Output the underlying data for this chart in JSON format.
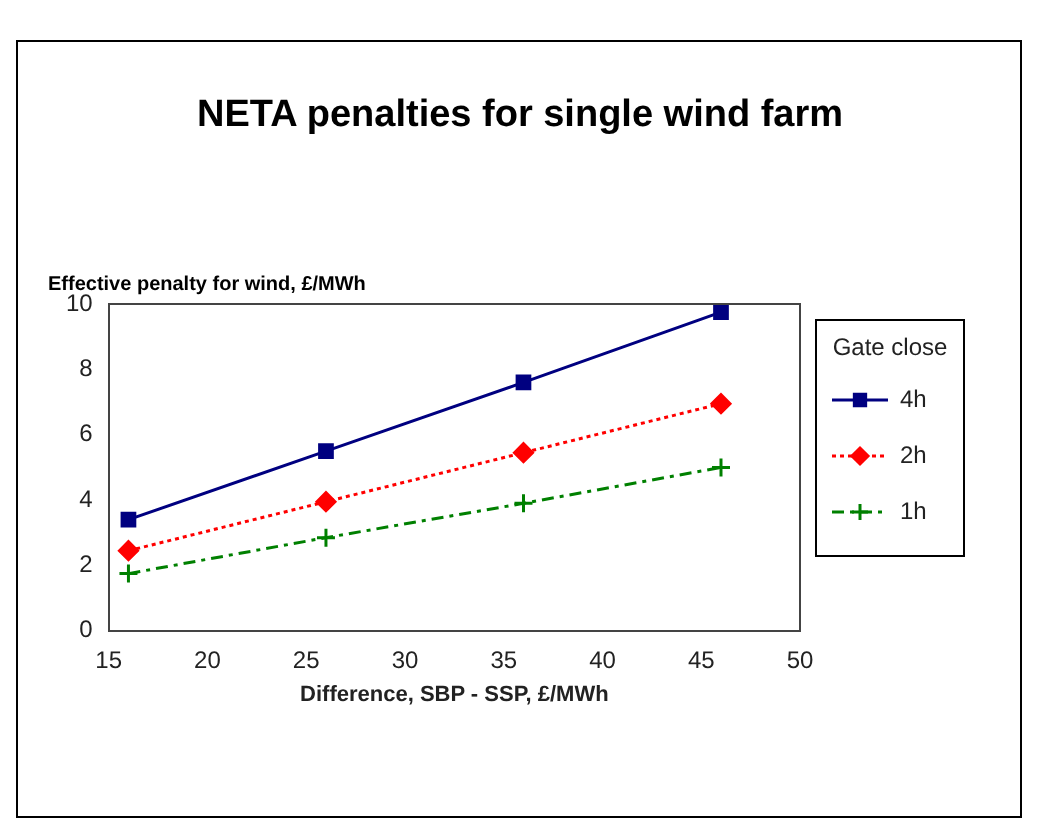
{
  "chart_data": {
    "type": "line",
    "title": "NETA penalties for single wind farm",
    "ylabel": "Effective penalty for wind, £/MWh",
    "xlabel": "Difference, SBP - SSP, £/MWh",
    "legend_title": "Gate close",
    "x": [
      16,
      26,
      36,
      46
    ],
    "series": [
      {
        "name": "4h",
        "color": "#000080",
        "values": [
          3.4,
          5.5,
          7.6,
          9.75
        ],
        "marker": "square",
        "line_style": "solid"
      },
      {
        "name": "2h",
        "color": "#ff0000",
        "values": [
          2.45,
          3.95,
          5.45,
          6.95
        ],
        "marker": "diamond",
        "line_style": "dotted"
      },
      {
        "name": "1h",
        "color": "#008000",
        "values": [
          1.75,
          2.85,
          3.9,
          5.0
        ],
        "marker": "cross",
        "line_style": "dashed"
      }
    ],
    "xlim": [
      15,
      50
    ],
    "xticks": [
      15,
      20,
      25,
      30,
      35,
      40,
      45,
      50
    ],
    "ylim": [
      0,
      10
    ],
    "yticks": [
      0,
      2,
      4,
      6,
      8,
      10
    ],
    "grid": false,
    "legend": "right"
  }
}
